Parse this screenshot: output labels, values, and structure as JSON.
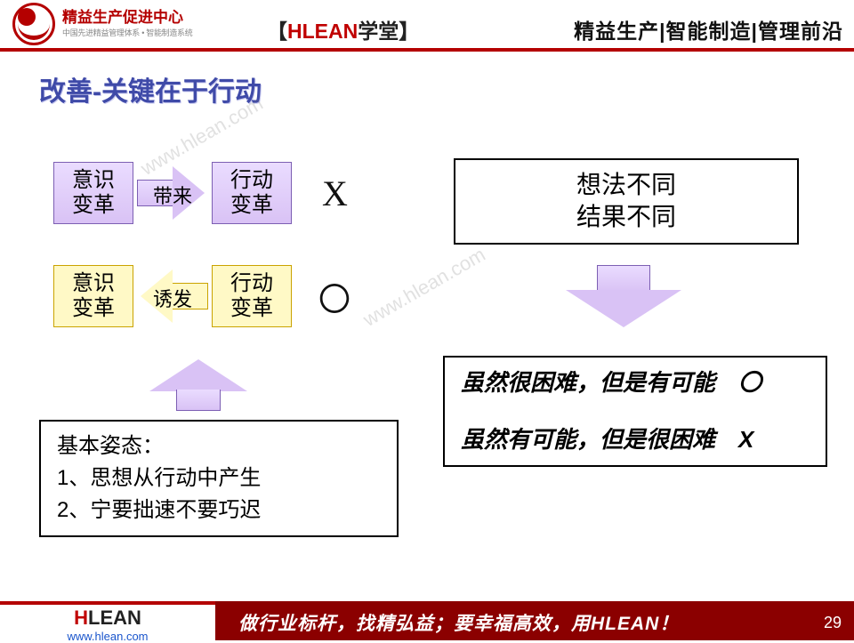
{
  "colors": {
    "brand_red": "#b40000",
    "dark_red": "#8b0000",
    "title_blue": "#3f4aa8",
    "purple_border": "#7c5fb3",
    "purple_fill_top": "#eadcff",
    "purple_fill_bot": "#d9c2f5",
    "yellow_fill": "#fff9c6",
    "yellow_border": "#caa300",
    "black": "#000000",
    "link_blue": "#1a55cc"
  },
  "header": {
    "logo_cn": "精益生产促进中心",
    "logo_sub": "中国先进精益管理体系 • 智能制造系统",
    "center_prefix": "【",
    "center_brand": "HLEAN",
    "center_word": "学堂",
    "center_suffix": "】",
    "right": "精益生产|智能制造|管理前沿"
  },
  "title": "改善-关键在于行动",
  "watermark": "www.hlean.com",
  "row1_box_left": "意识\n变革",
  "row1_arrow": "带来",
  "row1_box_right": "行动\n变革",
  "row1_mark": "X",
  "row2_box_left": "意识\n变革",
  "row2_arrow": "诱发",
  "row2_box_right": "行动\n变革",
  "row2_mark": "〇",
  "right_box_line1": "想法不同",
  "right_box_line2": "结果不同",
  "bottom_left_box": "基本姿态：\n1、思想从行动中产生\n2、宁要拙速不要巧迟",
  "bottom_right_para1": "虽然很困难，但是有可能　〇",
  "bottom_right_para2": "虽然有可能，但是很困难　X",
  "footer": {
    "logo_h": "H",
    "logo_rest": "LEAN",
    "url": "www.hlean.com",
    "text": "做行业标杆，找精弘益；要幸福高效，用HLEAN！",
    "page": "29"
  }
}
